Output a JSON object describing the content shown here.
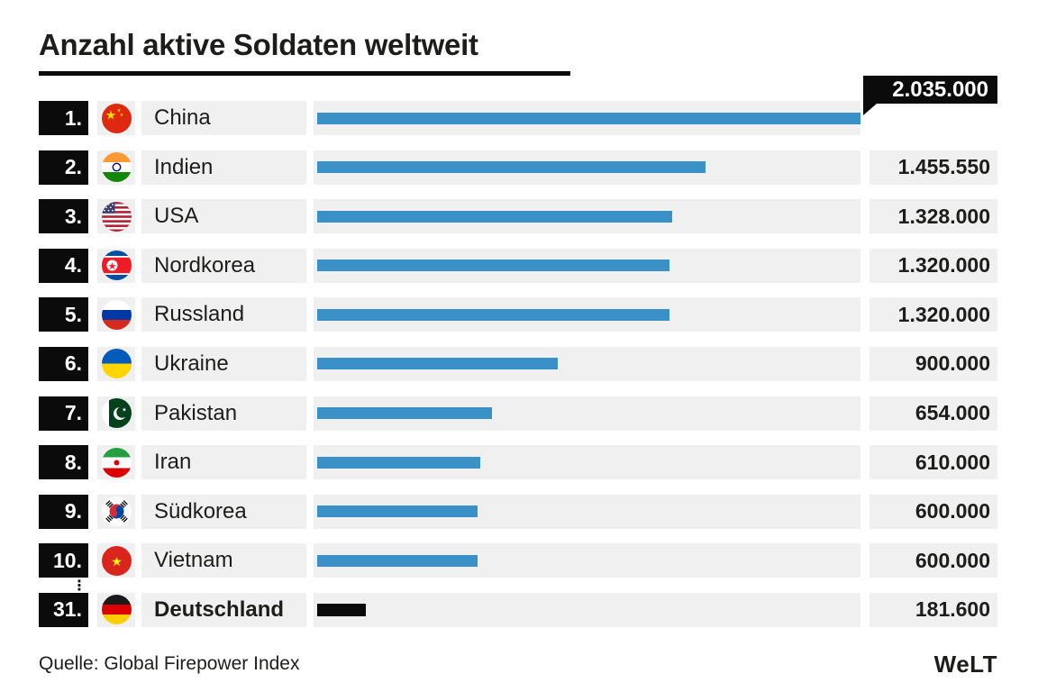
{
  "title": "Anzahl aktive Soldaten weltweit",
  "source": "Quelle: Global Firepower Index",
  "brand": "WeLT",
  "gap_marker": "⋮",
  "colors": {
    "bar_blue": "#3a91c8",
    "bar_black": "#0b0b0b",
    "cell_bg": "#f0f0f0",
    "text": "#1d1d1b"
  },
  "rows": [
    {
      "rank": "1.",
      "country": "China",
      "flag": "cn",
      "value": 2035000,
      "value_label": "2.035.000",
      "callout": true
    },
    {
      "rank": "2.",
      "country": "Indien",
      "flag": "in",
      "value": 1455550,
      "value_label": "1.455.550"
    },
    {
      "rank": "3.",
      "country": "USA",
      "flag": "us",
      "value": 1328000,
      "value_label": "1.328.000"
    },
    {
      "rank": "4.",
      "country": "Nordkorea",
      "flag": "kp",
      "value": 1320000,
      "value_label": "1.320.000"
    },
    {
      "rank": "5.",
      "country": "Russland",
      "flag": "ru",
      "value": 1320000,
      "value_label": "1.320.000"
    },
    {
      "rank": "6.",
      "country": "Ukraine",
      "flag": "ua",
      "value": 900000,
      "value_label": "900.000"
    },
    {
      "rank": "7.",
      "country": "Pakistan",
      "flag": "pk",
      "value": 654000,
      "value_label": "654.000"
    },
    {
      "rank": "8.",
      "country": "Iran",
      "flag": "ir",
      "value": 610000,
      "value_label": "610.000"
    },
    {
      "rank": "9.",
      "country": "Südkorea",
      "flag": "kr",
      "value": 600000,
      "value_label": "600.000"
    },
    {
      "rank": "10.",
      "country": "Vietnam",
      "flag": "vn",
      "value": 600000,
      "value_label": "600.000"
    },
    {
      "rank": "31.",
      "country": "Deutschland",
      "flag": "de",
      "value": 181600,
      "value_label": "181.600",
      "highlight": true,
      "gap_before": true
    }
  ],
  "chart_data": {
    "type": "bar",
    "orientation": "horizontal",
    "title": "Anzahl aktive Soldaten weltweit",
    "source": "Quelle: Global Firepower Index",
    "categories": [
      "China",
      "Indien",
      "USA",
      "Nordkorea",
      "Russland",
      "Ukraine",
      "Pakistan",
      "Iran",
      "Südkorea",
      "Vietnam",
      "Deutschland"
    ],
    "ranks": [
      1,
      2,
      3,
      4,
      5,
      6,
      7,
      8,
      9,
      10,
      31
    ],
    "values": [
      2035000,
      1455550,
      1328000,
      1320000,
      1320000,
      900000,
      654000,
      610000,
      600000,
      600000,
      181600
    ],
    "value_labels": [
      "2.035.000",
      "1.455.550",
      "1.328.000",
      "1.320.000",
      "1.320.000",
      "900.000",
      "654.000",
      "610.000",
      "600.000",
      "600.000",
      "181.600"
    ],
    "max_value": 2035000,
    "xlim": [
      0,
      2035000
    ],
    "grid": false,
    "legend": false,
    "highlight_category": "Deutschland",
    "bar_color_default": "#3a91c8",
    "bar_color_highlight": "#0b0b0b",
    "top_value_style": "black callout box above first bar"
  }
}
